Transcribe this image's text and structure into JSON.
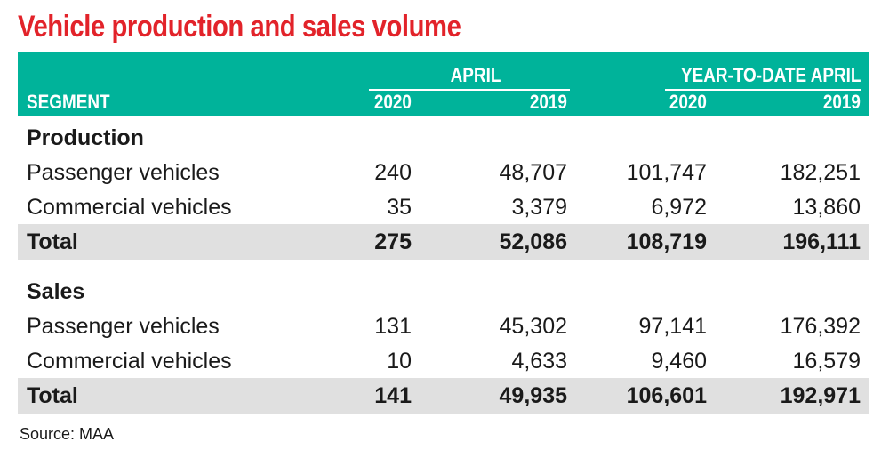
{
  "title": "Vehicle production and sales volume",
  "header": {
    "segment": "SEGMENT",
    "group_april": "APRIL",
    "group_ytd": "YEAR-TO-DATE APRIL",
    "years": [
      "2020",
      "2019",
      "2020",
      "2019"
    ]
  },
  "chart_data": {
    "type": "table",
    "title": "Vehicle production and sales volume",
    "columns": [
      "SEGMENT",
      "APRIL 2020",
      "APRIL 2019",
      "YEAR-TO-DATE APRIL 2020",
      "YEAR-TO-DATE APRIL 2019"
    ],
    "sections": [
      {
        "name": "Production",
        "rows": [
          {
            "label": "Passenger vehicles",
            "values": [
              "240",
              "48,707",
              "101,747",
              "182,251"
            ]
          },
          {
            "label": "Commercial vehicles",
            "values": [
              "35",
              "3,379",
              "6,972",
              "13,860"
            ]
          },
          {
            "label": "Total",
            "values": [
              "275",
              "52,086",
              "108,719",
              "196,111"
            ]
          }
        ]
      },
      {
        "name": "Sales",
        "rows": [
          {
            "label": "Passenger vehicles",
            "values": [
              "131",
              "45,302",
              "97,141",
              "176,392"
            ]
          },
          {
            "label": "Commercial vehicles",
            "values": [
              "10",
              "4,633",
              "9,460",
              "16,579"
            ]
          },
          {
            "label": "Total",
            "values": [
              "141",
              "49,935",
              "106,601",
              "192,971"
            ]
          }
        ]
      }
    ]
  },
  "source": "Source: MAA"
}
